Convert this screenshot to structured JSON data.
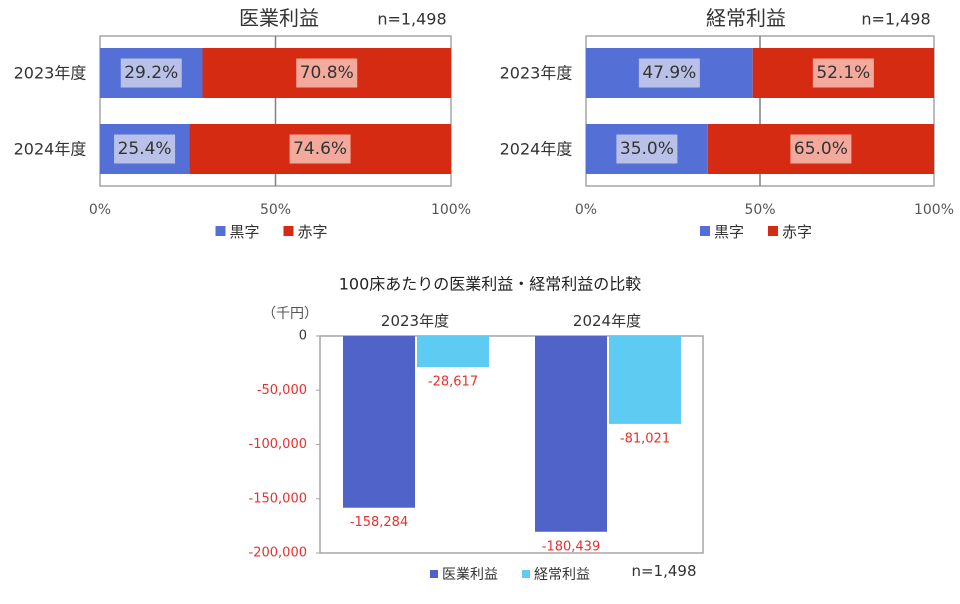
{
  "chart_data": [
    {
      "type": "bar",
      "orientation": "horizontal-stacked-100",
      "title": "医業利益",
      "note": "n=1,498",
      "categories": [
        "2023年度",
        "2024年度"
      ],
      "series": [
        {
          "name": "黒字",
          "values": [
            29.2,
            25.4
          ],
          "labels": [
            "29.2%",
            "25.4%"
          ],
          "color": "#5470d6",
          "label_bg": "#b9c1e8"
        },
        {
          "name": "赤字",
          "values": [
            70.8,
            74.6
          ],
          "labels": [
            "70.8%",
            "74.6%"
          ],
          "color": "#d42b12",
          "label_bg": "#f3aa9c"
        }
      ],
      "xticks": [
        "0%",
        "50%",
        "100%"
      ],
      "xlim": [
        0,
        100
      ],
      "grid": true,
      "legend": "bottom"
    },
    {
      "type": "bar",
      "orientation": "horizontal-stacked-100",
      "title": "経常利益",
      "note": "n=1,498",
      "categories": [
        "2023年度",
        "2024年度"
      ],
      "series": [
        {
          "name": "黒字",
          "values": [
            47.9,
            35.0
          ],
          "labels": [
            "47.9%",
            "35.0%"
          ],
          "color": "#5470d6",
          "label_bg": "#b9c1e8"
        },
        {
          "name": "赤字",
          "values": [
            52.1,
            65.0
          ],
          "labels": [
            "52.1%",
            "65.0%"
          ],
          "color": "#d42b12",
          "label_bg": "#f3aa9c"
        }
      ],
      "xticks": [
        "0%",
        "50%",
        "100%"
      ],
      "xlim": [
        0,
        100
      ],
      "grid": true,
      "legend": "bottom"
    },
    {
      "type": "bar",
      "title": "100床あたりの医業利益・経常利益の比較",
      "ylabel": "（千円）",
      "note": "n=1,498",
      "categories": [
        "2023年度",
        "2024年度"
      ],
      "series": [
        {
          "name": "医業利益",
          "values": [
            -158284,
            -180439
          ],
          "labels": [
            "-158,284",
            "-180,439"
          ],
          "color": "#4f63c9"
        },
        {
          "name": "経常利益",
          "values": [
            -28617,
            -81021
          ],
          "labels": [
            "-28,617",
            "-81,021"
          ],
          "color": "#5ecbf2"
        }
      ],
      "yticks": [
        0,
        -50000,
        -100000,
        -150000,
        -200000
      ],
      "ytick_labels": [
        "0",
        "-50,000",
        "-100,000",
        "-150,000",
        "-200,000"
      ],
      "ylim": [
        -200000,
        0
      ],
      "label_color": "#e8302c",
      "legend": "bottom"
    }
  ]
}
